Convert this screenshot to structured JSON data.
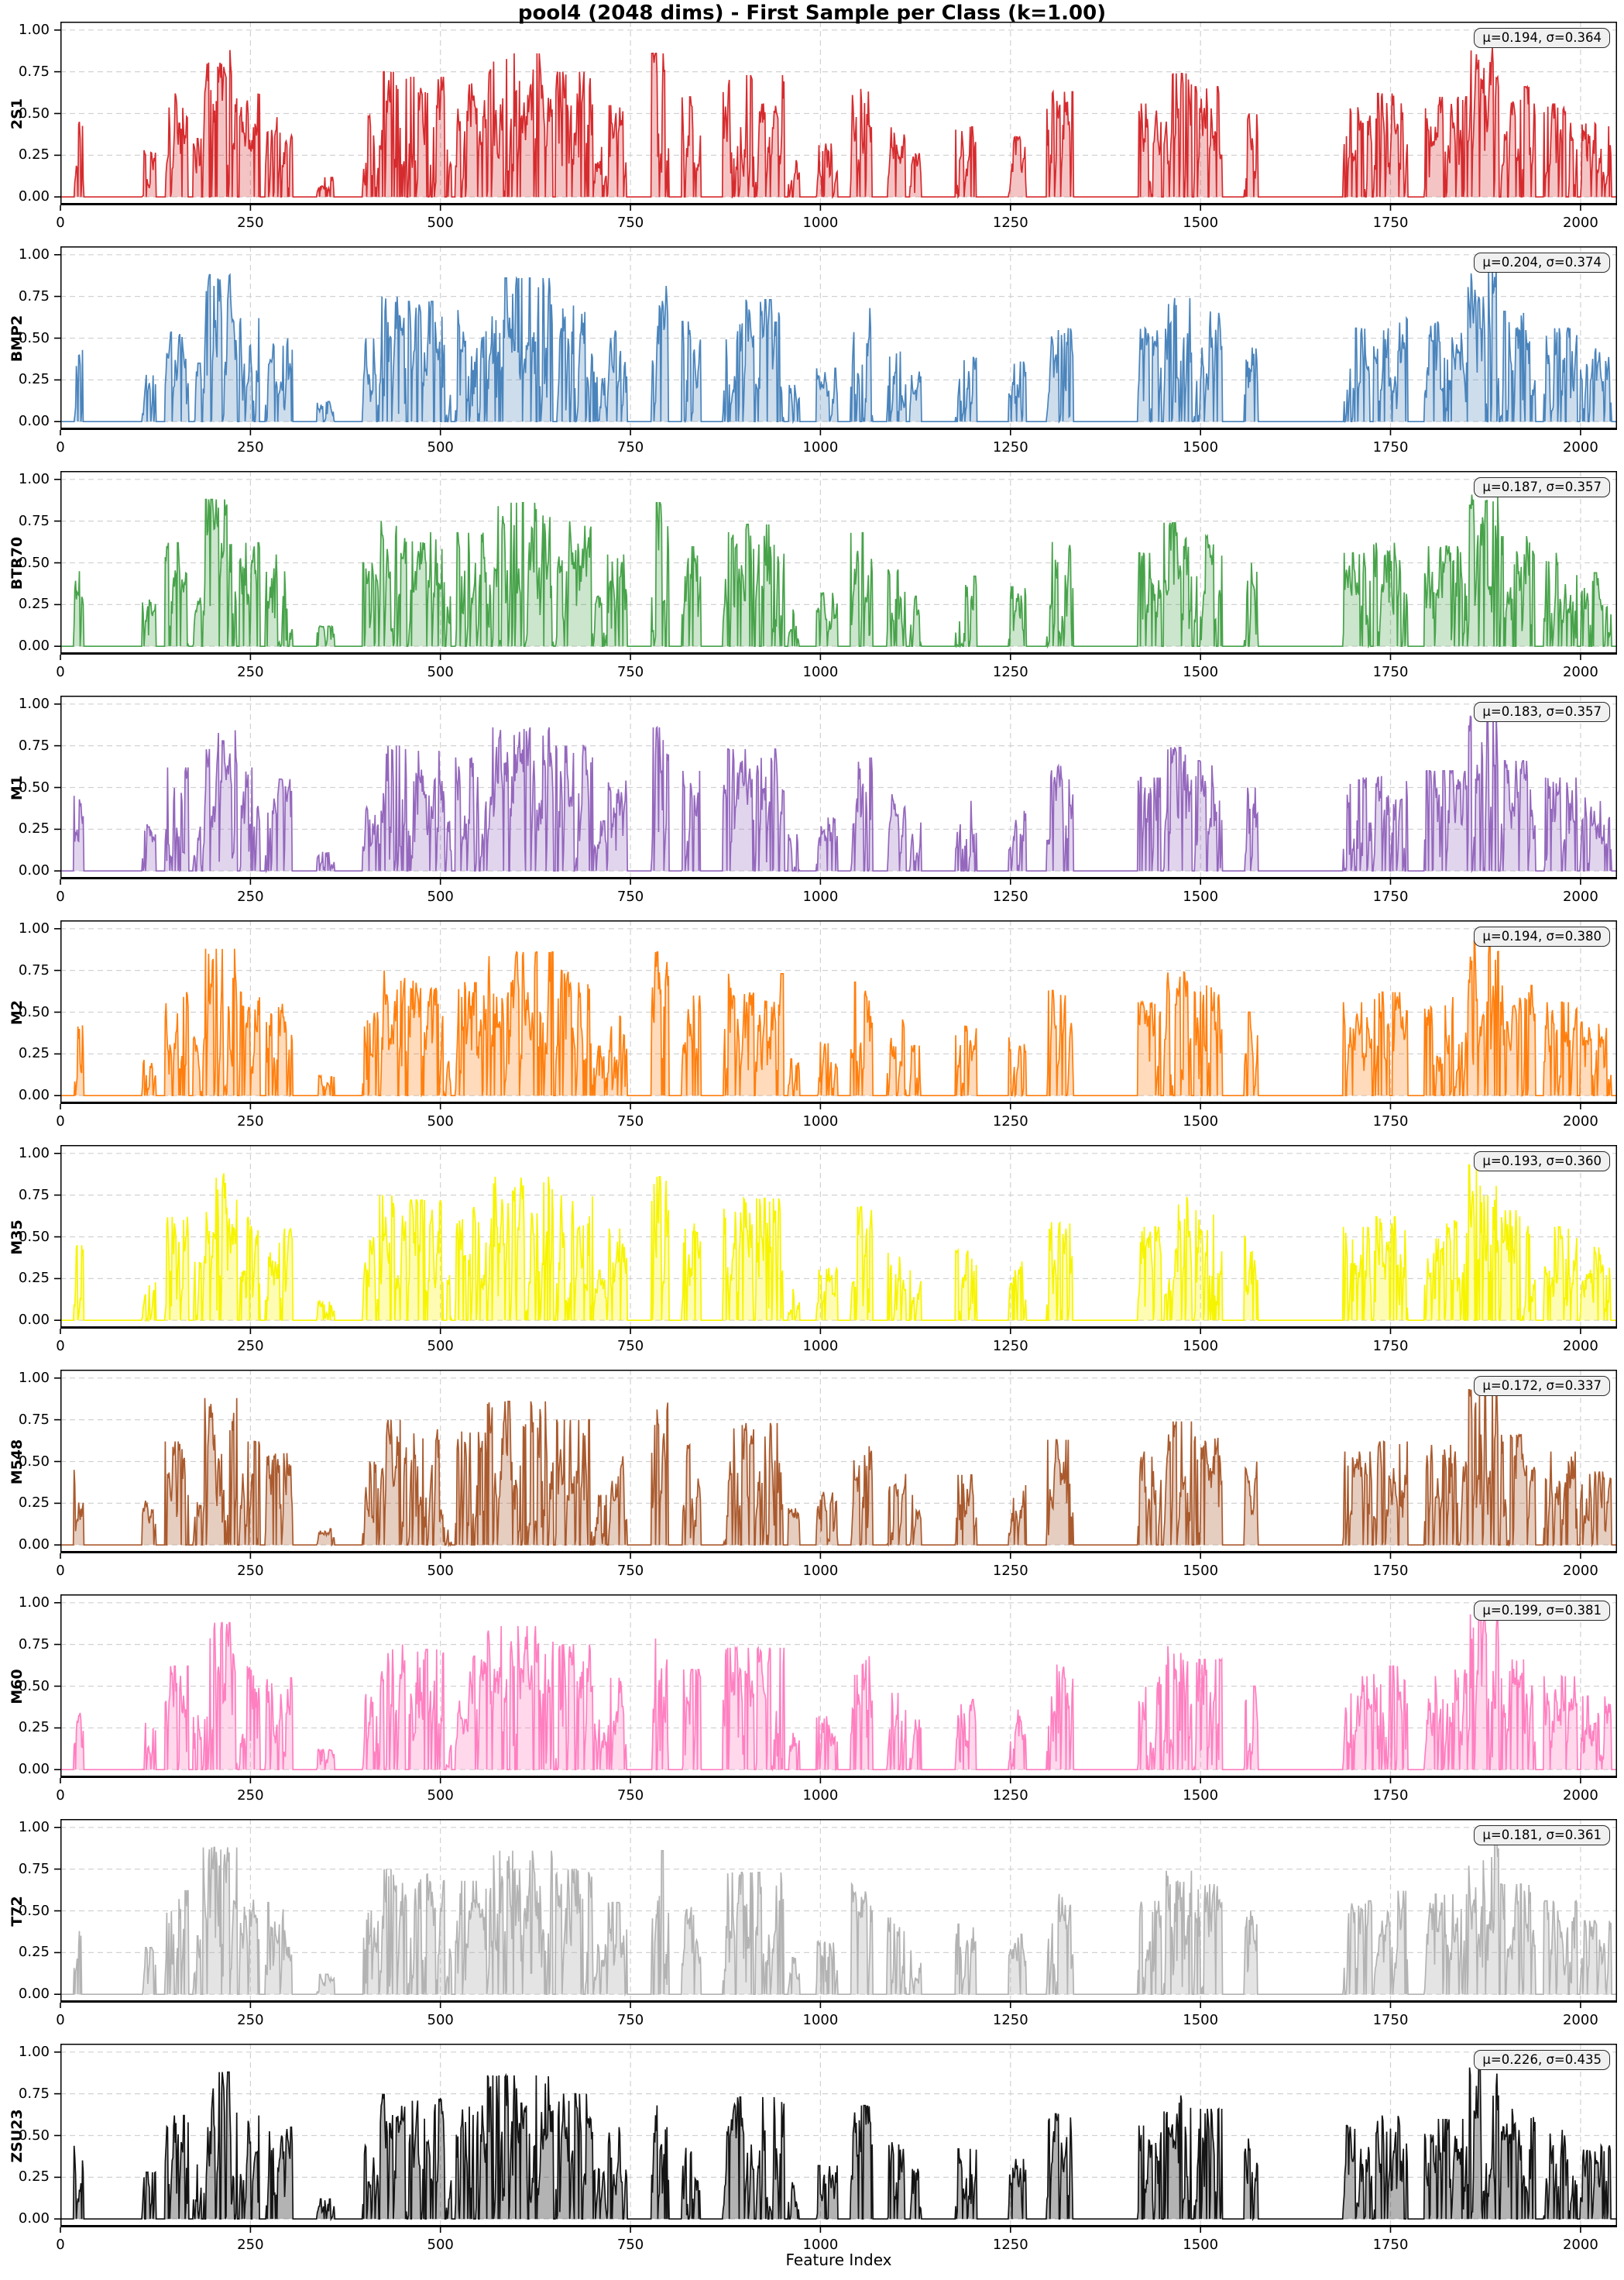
{
  "figure": {
    "title": "pool4 (2048 dims) - First Sample per Class (k=1.00)",
    "xlabel": "Feature Index"
  },
  "chart_data": {
    "type": "area",
    "title": "pool4 (2048 dims) - First Sample per Class (k=1.00)",
    "xlabel": "Feature Index",
    "layout": "10 stacked subplots, one per class, shared x axis 0-2048",
    "x_range": [
      0,
      2048
    ],
    "y_range": [
      -0.05,
      1.05
    ],
    "grid": {
      "style": "dashed",
      "color": "#d2d2d2",
      "on": true
    },
    "x_ticks": [
      {
        "v": 0,
        "label": "0"
      },
      {
        "v": 250,
        "label": "250"
      },
      {
        "v": 500,
        "label": "500"
      },
      {
        "v": 750,
        "label": "750"
      },
      {
        "v": 1000,
        "label": "1000"
      },
      {
        "v": 1250,
        "label": "1250"
      },
      {
        "v": 1500,
        "label": "1500"
      },
      {
        "v": 1750,
        "label": "1750"
      },
      {
        "v": 2000,
        "label": "2000"
      }
    ],
    "y_ticks": [
      {
        "v": 1.0,
        "label": "1.00"
      },
      {
        "v": 0.75,
        "label": "0.75"
      },
      {
        "v": 0.5,
        "label": "0.50"
      },
      {
        "v": 0.25,
        "label": "0.25"
      },
      {
        "v": 0.0,
        "label": "0.00"
      }
    ],
    "n_points": 2048,
    "panels": [
      {
        "class": "2S1",
        "color": "#d62b2e",
        "fill_opacity": 0.28,
        "mu": 0.194,
        "sigma": 0.364,
        "stat_label": "μ=0.194, σ=0.364",
        "seed": 101
      },
      {
        "class": "BMP2",
        "color": "#4a84bc",
        "fill_opacity": 0.28,
        "mu": 0.204,
        "sigma": 0.374,
        "stat_label": "μ=0.204, σ=0.374",
        "seed": 202
      },
      {
        "class": "BTR70",
        "color": "#47a34a",
        "fill_opacity": 0.28,
        "mu": 0.187,
        "sigma": 0.357,
        "stat_label": "μ=0.187, σ=0.357",
        "seed": 303
      },
      {
        "class": "M1",
        "color": "#9467bd",
        "fill_opacity": 0.28,
        "mu": 0.183,
        "sigma": 0.357,
        "stat_label": "μ=0.183, σ=0.357",
        "seed": 404
      },
      {
        "class": "M2",
        "color": "#ff7f0e",
        "fill_opacity": 0.28,
        "mu": 0.194,
        "sigma": 0.38,
        "stat_label": "μ=0.194, σ=0.380",
        "seed": 505
      },
      {
        "class": "M35",
        "color": "#f7f400",
        "fill_opacity": 0.3,
        "mu": 0.193,
        "sigma": 0.36,
        "stat_label": "μ=0.193, σ=0.360",
        "seed": 606
      },
      {
        "class": "M548",
        "color": "#aa5a2d",
        "fill_opacity": 0.3,
        "mu": 0.172,
        "sigma": 0.337,
        "stat_label": "μ=0.172, σ=0.337",
        "seed": 707
      },
      {
        "class": "M60",
        "color": "#ff7fc0",
        "fill_opacity": 0.3,
        "mu": 0.199,
        "sigma": 0.381,
        "stat_label": "μ=0.199, σ=0.381",
        "seed": 808
      },
      {
        "class": "T72",
        "color": "#b3b3b3",
        "fill_opacity": 0.35,
        "mu": 0.181,
        "sigma": 0.361,
        "stat_label": "μ=0.181, σ=0.361",
        "seed": 909
      },
      {
        "class": "ZSU23",
        "color": "#141414",
        "fill_opacity": 0.32,
        "mu": 0.226,
        "sigma": 0.435,
        "stat_label": "μ=0.226, σ=0.435",
        "seed": 1010
      }
    ],
    "active_regions": [
      [
        18,
        30,
        0.45
      ],
      [
        108,
        125,
        0.28
      ],
      [
        138,
        168,
        0.62
      ],
      [
        175,
        185,
        0.35
      ],
      [
        188,
        232,
        0.88
      ],
      [
        236,
        262,
        0.62
      ],
      [
        270,
        305,
        0.55
      ],
      [
        338,
        360,
        0.12
      ],
      [
        398,
        418,
        0.5
      ],
      [
        420,
        455,
        0.75
      ],
      [
        458,
        505,
        0.72
      ],
      [
        508,
        514,
        0.3
      ],
      [
        520,
        560,
        0.68
      ],
      [
        562,
        648,
        0.86
      ],
      [
        652,
        700,
        0.75
      ],
      [
        702,
        718,
        0.3
      ],
      [
        720,
        745,
        0.55
      ],
      [
        778,
        800,
        0.86
      ],
      [
        818,
        842,
        0.6
      ],
      [
        872,
        912,
        0.73
      ],
      [
        915,
        952,
        0.73
      ],
      [
        958,
        972,
        0.22
      ],
      [
        995,
        1022,
        0.32
      ],
      [
        1040,
        1068,
        0.68
      ],
      [
        1088,
        1112,
        0.46
      ],
      [
        1118,
        1132,
        0.3
      ],
      [
        1178,
        1205,
        0.42
      ],
      [
        1248,
        1270,
        0.36
      ],
      [
        1298,
        1332,
        0.63
      ],
      [
        1418,
        1448,
        0.56
      ],
      [
        1452,
        1488,
        0.74
      ],
      [
        1492,
        1528,
        0.66
      ],
      [
        1558,
        1575,
        0.5
      ],
      [
        1688,
        1725,
        0.56
      ],
      [
        1728,
        1772,
        0.62
      ],
      [
        1795,
        1850,
        0.6
      ],
      [
        1852,
        1892,
        0.93
      ],
      [
        1895,
        1940,
        0.66
      ],
      [
        1952,
        1995,
        0.56
      ],
      [
        2000,
        2040,
        0.44
      ]
    ]
  }
}
